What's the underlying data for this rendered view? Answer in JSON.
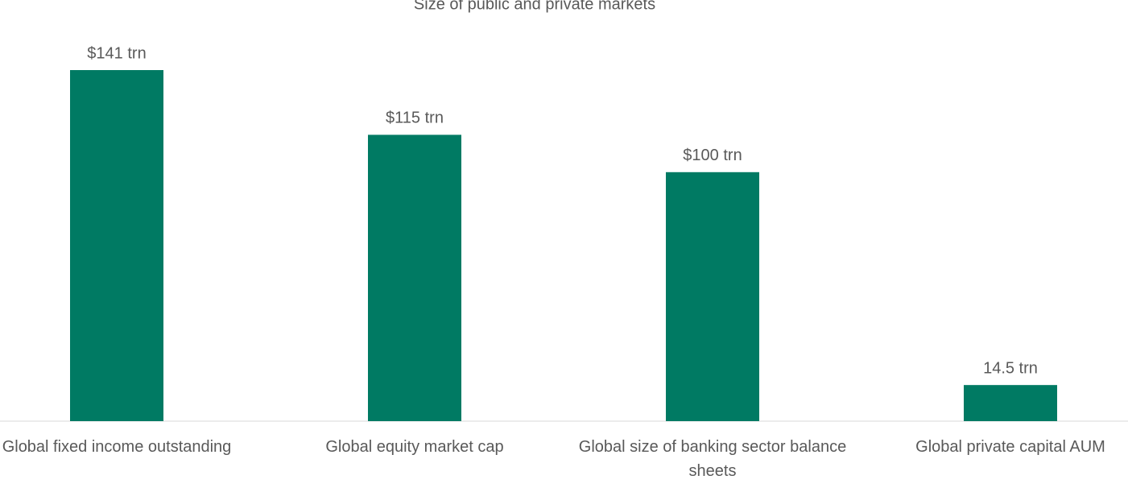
{
  "chart_data": {
    "type": "bar",
    "title": "Size of public and private markets",
    "categories": [
      "Global fixed income outstanding",
      "Global equity market cap",
      "Global size of banking sector balance sheets",
      "Global private capital AUM"
    ],
    "values": [
      141,
      115,
      100,
      14.5
    ],
    "value_labels": [
      "$141 trn",
      "$115 trn",
      "$100 trn",
      "14.5 trn"
    ],
    "color": "#007a63",
    "ylim": [
      0,
      150
    ]
  }
}
